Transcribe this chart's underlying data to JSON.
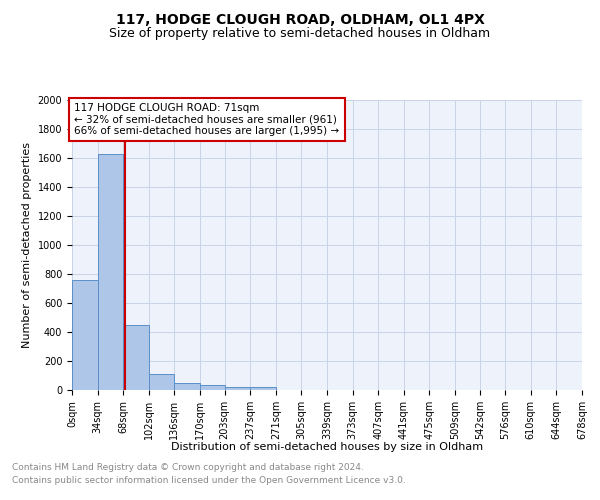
{
  "title": "117, HODGE CLOUGH ROAD, OLDHAM, OL1 4PX",
  "subtitle": "Size of property relative to semi-detached houses in Oldham",
  "xlabel": "Distribution of semi-detached houses by size in Oldham",
  "ylabel": "Number of semi-detached properties",
  "footnote1": "Contains HM Land Registry data © Crown copyright and database right 2024.",
  "footnote2": "Contains public sector information licensed under the Open Government Licence v3.0.",
  "annotation_title": "117 HODGE CLOUGH ROAD: 71sqm",
  "annotation_line1": "← 32% of semi-detached houses are smaller (961)",
  "annotation_line2": "66% of semi-detached houses are larger (1,995) →",
  "property_size": 71,
  "bin_edges": [
    0,
    34,
    68,
    102,
    136,
    170,
    203,
    237,
    271,
    305,
    339,
    373,
    407,
    441,
    475,
    509,
    542,
    576,
    610,
    644,
    678
  ],
  "bin_labels": [
    "0sqm",
    "34sqm",
    "68sqm",
    "102sqm",
    "136sqm",
    "170sqm",
    "203sqm",
    "237sqm",
    "271sqm",
    "305sqm",
    "339sqm",
    "373sqm",
    "407sqm",
    "441sqm",
    "475sqm",
    "509sqm",
    "542sqm",
    "576sqm",
    "610sqm",
    "644sqm",
    "678sqm"
  ],
  "bar_heights": [
    760,
    1630,
    445,
    113,
    47,
    35,
    23,
    18,
    0,
    0,
    0,
    0,
    0,
    0,
    0,
    0,
    0,
    0,
    0,
    0
  ],
  "bar_color": "#aec6e8",
  "bar_edge_color": "#5b8fc9",
  "vline_color": "#cc0000",
  "vline_x": 71,
  "ylim": [
    0,
    2000
  ],
  "yticks": [
    0,
    200,
    400,
    600,
    800,
    1000,
    1200,
    1400,
    1600,
    1800,
    2000
  ],
  "bg_color": "#eef2fa",
  "annotation_box_color": "#ffffff",
  "annotation_box_edge": "#cc0000",
  "grid_color": "#c8d4e8",
  "title_fontsize": 10,
  "subtitle_fontsize": 9,
  "axis_label_fontsize": 8,
  "tick_fontsize": 7,
  "annotation_fontsize": 7.5,
  "footnote_fontsize": 6.5
}
